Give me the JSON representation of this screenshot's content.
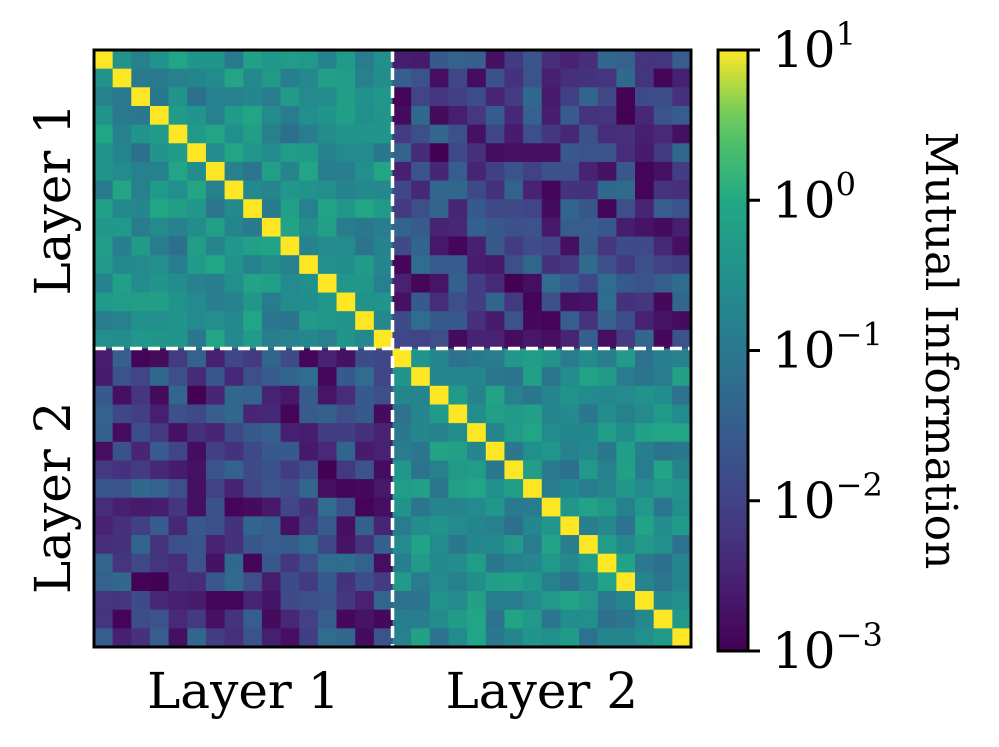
{
  "chart_data": {
    "type": "heatmap",
    "title": "",
    "n": 32,
    "blocks": [
      {
        "name": "Layer 1",
        "size": 16
      },
      {
        "name": "Layer 2",
        "size": 16
      }
    ],
    "x_tick_labels": [
      "Layer 1",
      "Layer 2"
    ],
    "y_tick_labels": [
      "Layer 1",
      "Layer 2"
    ],
    "colorbar": {
      "label": "Mutual Information",
      "scale": "log",
      "range": [
        0.001,
        10
      ],
      "ticks": [
        {
          "value": 10,
          "base": "10",
          "exp": "1"
        },
        {
          "value": 1,
          "base": "10",
          "exp": "0"
        },
        {
          "value": 0.1,
          "base": "10",
          "exp": "−1"
        },
        {
          "value": 0.01,
          "base": "10",
          "exp": "−2"
        },
        {
          "value": 0.001,
          "base": "10",
          "exp": "−3"
        }
      ],
      "colormap": "viridis"
    },
    "typical_values": {
      "diagonal": 10,
      "within_layer": 0.25,
      "cross_layer": 0.008
    },
    "divider": {
      "style": "dashed",
      "color": "#ffffff"
    }
  }
}
